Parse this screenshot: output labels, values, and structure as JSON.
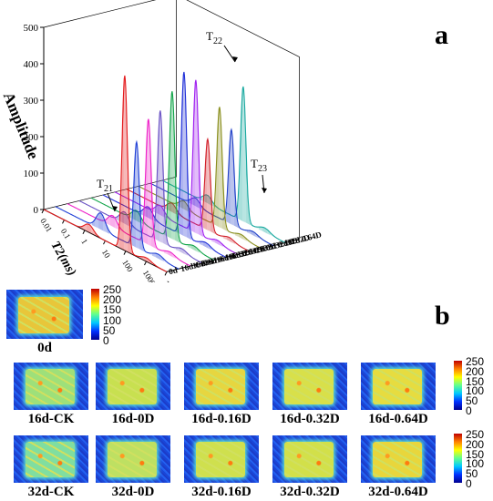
{
  "panel_a_letter": "a",
  "panel_b_letter": "b",
  "chart_data": {
    "type": "line",
    "title": "",
    "xlabel": "T2(ms)",
    "ylabel": "Amplitude",
    "x_scale": "log",
    "x_ticks": [
      "0.01",
      "0.1",
      "1",
      "10",
      "100",
      "1000",
      "10000"
    ],
    "y_ticks": [
      "0",
      "100",
      "200",
      "300",
      "400",
      "500"
    ],
    "ylim": [
      0,
      500
    ],
    "peak_labels": {
      "t21": "T",
      "t21_sub": "21",
      "t22": "T",
      "t22_sub": "22",
      "t23": "T",
      "t23_sub": "23"
    },
    "series": [
      {
        "name": "0d",
        "color": "#e41a1c",
        "t21": 22,
        "t22": 480,
        "t23": 10
      },
      {
        "name": "16d CK",
        "color": "#1f3fd6",
        "t21": 45,
        "t22": 290,
        "t23": 12
      },
      {
        "name": "16d 0D",
        "color": "#ee20c8",
        "t21": 30,
        "t22": 345,
        "t23": 10
      },
      {
        "name": "16d 0.16D",
        "color": "#6a52c4",
        "t21": 32,
        "t22": 360,
        "t23": 11
      },
      {
        "name": "16d 0.32D",
        "color": "#13a54a",
        "t21": 28,
        "t22": 405,
        "t23": 11
      },
      {
        "name": "16d 0.64D",
        "color": "#2030d8",
        "t21": 30,
        "t22": 450,
        "t23": 12
      },
      {
        "name": "32d CK",
        "color": "#a020f0",
        "t21": 26,
        "t22": 420,
        "t23": 10
      },
      {
        "name": "32d 0D",
        "color": "#d2202a",
        "t21": 24,
        "t22": 250,
        "t23": 10
      },
      {
        "name": "32d 0.16D",
        "color": "#8a8f1e",
        "t21": 22,
        "t22": 330,
        "t23": 10
      },
      {
        "name": "32d 0.32D",
        "color": "#2040c8",
        "t21": 22,
        "t22": 260,
        "t23": 10
      },
      {
        "name": "32d 0.64D",
        "color": "#1aa9a0",
        "t21": 22,
        "t22": 370,
        "t23": 12
      }
    ]
  },
  "colorbar": {
    "labels": [
      "250",
      "200",
      "150",
      "100",
      "50",
      "0"
    ],
    "colors": [
      "#00008f",
      "#0030ff",
      "#00c8ff",
      "#60ff90",
      "#ffff00",
      "#ff8000",
      "#c00000"
    ]
  },
  "images": [
    {
      "label": "0d",
      "fill": "#e8c63a"
    },
    {
      "label": "16d-CK",
      "fill": "#9ee07a"
    },
    {
      "label": "16d-0D",
      "fill": "#c8e050"
    },
    {
      "label": "16d-0.16D",
      "fill": "#e6d640"
    },
    {
      "label": "16d-0.32D",
      "fill": "#d8e04a"
    },
    {
      "label": "16d-0.64D",
      "fill": "#e6dc40"
    },
    {
      "label": "32d-CK",
      "fill": "#80dea0"
    },
    {
      "label": "32d-0D",
      "fill": "#bee062"
    },
    {
      "label": "32d-0.16D",
      "fill": "#cfe04e"
    },
    {
      "label": "32d-0.32D",
      "fill": "#d2e04a"
    },
    {
      "label": "32d-0.64D",
      "fill": "#e8d63c"
    }
  ]
}
